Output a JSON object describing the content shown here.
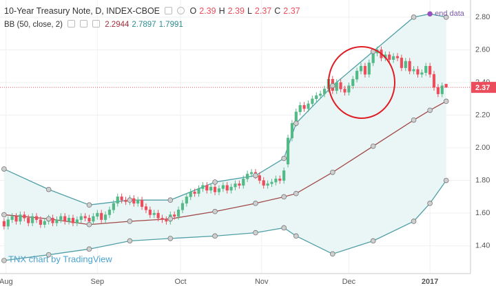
{
  "chart_data": {
    "type": "candlestick",
    "title": "10-Year Treasury Note, D, INDEX-CBOE",
    "ohlc_legend": [
      {
        "label": "O",
        "value": "2.39"
      },
      {
        "label": "H",
        "value": "2.39"
      },
      {
        "label": "L",
        "value": "2.37"
      },
      {
        "label": "C",
        "value": "2.37"
      }
    ],
    "indicator": {
      "name": "BB (50, close, 2)",
      "values": [
        {
          "value": "2.2944",
          "color": "#a0303a"
        },
        {
          "value": "2.7897",
          "color": "#2c8c8c"
        },
        {
          "value": "1.7991",
          "color": "#2c8c8c"
        }
      ]
    },
    "annotation": "end data",
    "watermark": "TNX chart by TradingView",
    "up_color": "#53b987",
    "down_color": "#eb4d5c",
    "open": [
      1.55,
      1.52,
      1.56,
      1.58,
      1.55,
      1.59,
      1.57,
      1.54,
      1.58,
      1.56,
      1.53,
      1.55,
      1.57,
      1.54,
      1.56,
      1.58,
      1.55,
      1.57,
      1.54,
      1.56,
      1.58,
      1.57,
      1.55,
      1.58,
      1.6,
      1.56,
      1.59,
      1.62,
      1.66,
      1.7,
      1.68,
      1.67,
      1.69,
      1.66,
      1.68,
      1.64,
      1.62,
      1.59,
      1.6,
      1.57,
      1.56,
      1.55,
      1.59,
      1.58,
      1.62,
      1.66,
      1.7,
      1.73,
      1.72,
      1.75,
      1.77,
      1.74,
      1.76,
      1.73,
      1.75,
      1.77,
      1.74,
      1.76,
      1.78,
      1.77,
      1.81,
      1.84,
      1.85,
      1.83,
      1.8,
      1.77,
      1.78,
      1.79,
      1.81,
      1.8,
      1.9,
      2.06,
      2.15,
      2.22,
      2.26,
      2.24,
      2.27,
      2.3,
      2.32,
      2.33,
      2.36,
      2.42,
      2.35,
      2.4,
      2.36,
      2.34,
      2.38,
      2.42,
      2.47,
      2.5,
      2.45,
      2.52,
      2.58,
      2.6,
      2.55,
      2.57,
      2.54,
      2.56,
      2.55,
      2.49,
      2.53,
      2.47,
      2.48,
      2.45,
      2.46,
      2.5,
      2.45,
      2.37,
      2.33,
      2.39
    ],
    "high": [
      1.57,
      1.58,
      1.6,
      1.6,
      1.61,
      1.61,
      1.59,
      1.6,
      1.6,
      1.58,
      1.57,
      1.59,
      1.59,
      1.58,
      1.6,
      1.6,
      1.59,
      1.59,
      1.58,
      1.6,
      1.6,
      1.59,
      1.6,
      1.62,
      1.62,
      1.61,
      1.64,
      1.68,
      1.72,
      1.72,
      1.7,
      1.71,
      1.71,
      1.7,
      1.7,
      1.66,
      1.64,
      1.62,
      1.62,
      1.59,
      1.58,
      1.61,
      1.61,
      1.64,
      1.68,
      1.72,
      1.75,
      1.75,
      1.77,
      1.79,
      1.79,
      1.78,
      1.78,
      1.77,
      1.79,
      1.79,
      1.78,
      1.8,
      1.8,
      1.83,
      1.86,
      1.87,
      1.87,
      1.85,
      1.82,
      1.8,
      1.81,
      1.83,
      1.83,
      1.88,
      2.08,
      2.17,
      2.24,
      2.28,
      2.28,
      2.29,
      2.32,
      2.34,
      2.35,
      2.38,
      2.44,
      2.44,
      2.42,
      2.42,
      2.38,
      2.4,
      2.44,
      2.49,
      2.52,
      2.52,
      2.54,
      2.6,
      2.62,
      2.62,
      2.59,
      2.59,
      2.58,
      2.58,
      2.57,
      2.55,
      2.55,
      2.5,
      2.5,
      2.48,
      2.52,
      2.52,
      2.47,
      2.39,
      2.4,
      2.39
    ],
    "low": [
      1.5,
      1.5,
      1.54,
      1.53,
      1.53,
      1.55,
      1.52,
      1.52,
      1.54,
      1.51,
      1.51,
      1.53,
      1.52,
      1.52,
      1.54,
      1.53,
      1.53,
      1.52,
      1.52,
      1.54,
      1.55,
      1.53,
      1.53,
      1.56,
      1.54,
      1.54,
      1.57,
      1.6,
      1.64,
      1.66,
      1.65,
      1.65,
      1.64,
      1.64,
      1.62,
      1.6,
      1.57,
      1.57,
      1.55,
      1.54,
      1.53,
      1.53,
      1.56,
      1.56,
      1.6,
      1.64,
      1.68,
      1.7,
      1.7,
      1.73,
      1.72,
      1.72,
      1.71,
      1.71,
      1.73,
      1.72,
      1.72,
      1.74,
      1.75,
      1.75,
      1.79,
      1.82,
      1.81,
      1.78,
      1.75,
      1.75,
      1.76,
      1.77,
      1.78,
      1.78,
      1.88,
      2.04,
      2.13,
      2.2,
      2.22,
      2.22,
      2.25,
      2.28,
      2.3,
      2.31,
      2.34,
      2.33,
      2.33,
      2.34,
      2.32,
      2.32,
      2.36,
      2.4,
      2.45,
      2.43,
      2.43,
      2.5,
      2.56,
      2.53,
      2.53,
      2.52,
      2.52,
      2.53,
      2.47,
      2.47,
      2.45,
      2.45,
      2.43,
      2.43,
      2.44,
      2.43,
      2.35,
      2.31,
      2.31,
      2.37
    ],
    "close": [
      1.52,
      1.56,
      1.58,
      1.55,
      1.59,
      1.57,
      1.54,
      1.58,
      1.56,
      1.53,
      1.55,
      1.57,
      1.54,
      1.56,
      1.58,
      1.55,
      1.57,
      1.54,
      1.56,
      1.58,
      1.57,
      1.55,
      1.58,
      1.6,
      1.56,
      1.59,
      1.62,
      1.66,
      1.7,
      1.68,
      1.67,
      1.69,
      1.66,
      1.68,
      1.64,
      1.62,
      1.59,
      1.6,
      1.57,
      1.56,
      1.55,
      1.59,
      1.58,
      1.62,
      1.66,
      1.7,
      1.73,
      1.72,
      1.75,
      1.77,
      1.74,
      1.76,
      1.73,
      1.75,
      1.77,
      1.74,
      1.76,
      1.78,
      1.77,
      1.81,
      1.84,
      1.85,
      1.83,
      1.8,
      1.77,
      1.78,
      1.79,
      1.81,
      1.8,
      1.86,
      2.06,
      2.15,
      2.22,
      2.26,
      2.24,
      2.27,
      2.3,
      2.32,
      2.33,
      2.36,
      2.42,
      2.35,
      2.4,
      2.36,
      2.34,
      2.38,
      2.42,
      2.47,
      2.5,
      2.45,
      2.52,
      2.58,
      2.6,
      2.55,
      2.57,
      2.54,
      2.56,
      2.55,
      2.49,
      2.53,
      2.47,
      2.48,
      2.45,
      2.46,
      2.5,
      2.45,
      2.37,
      2.33,
      2.38,
      2.37
    ],
    "bands": [
      {
        "color": "#4f9fa6",
        "x": [
          0,
          11,
          21,
          31,
          41,
          52,
          62,
          69,
          72,
          81,
          91,
          101,
          105,
          109
        ],
        "values": [
          1.87,
          1.745,
          1.65,
          1.68,
          1.68,
          1.79,
          1.83,
          1.935,
          2.15,
          2.38,
          2.59,
          2.8,
          2.82,
          2.8
        ]
      },
      {
        "color": "#a04848",
        "x": [
          0,
          11,
          21,
          31,
          41,
          52,
          62,
          69,
          72,
          81,
          91,
          101,
          105,
          109
        ],
        "values": [
          1.59,
          1.565,
          1.53,
          1.55,
          1.565,
          1.61,
          1.66,
          1.7,
          1.72,
          1.85,
          2.01,
          2.17,
          2.23,
          2.285
        ]
      },
      {
        "color": "#4f9fa6",
        "x": [
          0,
          11,
          21,
          31,
          41,
          52,
          62,
          69,
          72,
          81,
          91,
          101,
          105,
          109
        ],
        "values": [
          1.31,
          1.345,
          1.38,
          1.43,
          1.445,
          1.46,
          1.48,
          1.51,
          1.46,
          1.35,
          1.43,
          1.55,
          1.66,
          1.8
        ]
      }
    ],
    "band_fill": "#eaf5f5",
    "xlim": [
      -1,
      115
    ],
    "xticks": [
      {
        "value": 0.5,
        "label": "Aug"
      },
      {
        "value": 23,
        "label": "Sep"
      },
      {
        "value": 43.5,
        "label": "Oct"
      },
      {
        "value": 63.5,
        "label": "Nov"
      },
      {
        "value": 85,
        "label": "Dec"
      },
      {
        "value": 105,
        "label": "2017"
      }
    ],
    "ylim": [
      1.23,
      2.905
    ],
    "yticks": [
      {
        "value": 1.4,
        "label": "1.40"
      },
      {
        "value": 1.6,
        "label": "1.60"
      },
      {
        "value": 1.8,
        "label": "1.80"
      },
      {
        "value": 2.0,
        "label": "2.00"
      },
      {
        "value": 2.2,
        "label": "2.20"
      },
      {
        "value": 2.4,
        "label": "2.40"
      },
      {
        "value": 2.6,
        "label": "2.60"
      },
      {
        "value": 2.8,
        "label": "2.80"
      }
    ],
    "grid": true
  }
}
